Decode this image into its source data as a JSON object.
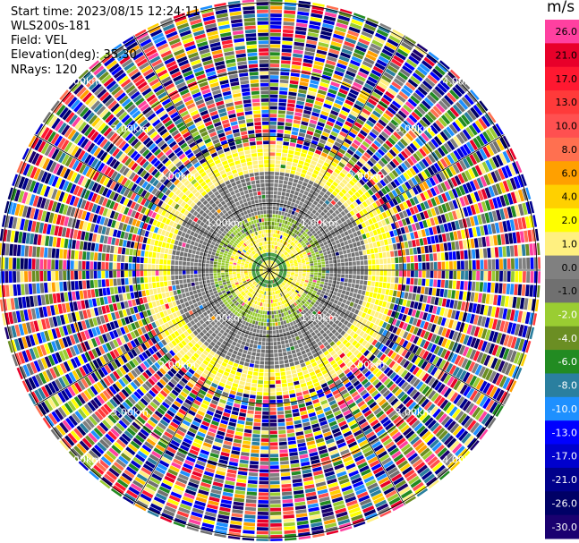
{
  "header": {
    "start_time": "Start time: 2023/08/15 12:24:11",
    "instrument": "WLS200s-181",
    "field": "Field: VEL",
    "elevation": "Elevation(deg): 35.30",
    "nrays": "NRays: 120"
  },
  "colorbar": {
    "units": "m/s",
    "ticks": [
      "26.0",
      "21.0",
      "17.0",
      "13.0",
      "10.0",
      "8.0",
      "6.0",
      "4.0",
      "2.0",
      "1.0",
      "0.0",
      "-1.0",
      "-2.0",
      "-4.0",
      "-6.0",
      "-8.0",
      "-10.0",
      "-13.0",
      "-17.0",
      "-21.0",
      "-26.0",
      "-30.0"
    ],
    "tick_values": [
      26,
      21,
      17,
      13,
      10,
      8,
      6,
      4,
      2,
      1,
      0,
      -1,
      -2,
      -4,
      -6,
      -8,
      -10,
      -13,
      -17,
      -21,
      -26,
      -30
    ],
    "colors": [
      "#ff40a0",
      "#e8002a",
      "#ff1830",
      "#ff3a3a",
      "#ff5050",
      "#ff7050",
      "#ffa000",
      "#ffd000",
      "#ffff00",
      "#fff080",
      "#808080",
      "#707070",
      "#9acd32",
      "#6b8e23",
      "#228b22",
      "#2a7f9f",
      "#1e90ff",
      "#0000ff",
      "#0000cd",
      "#00008b",
      "#000066",
      "#1a0070"
    ]
  },
  "chart_data": {
    "type": "heatmap",
    "projection": "polar-ppi",
    "field": "VEL",
    "units": "m/s",
    "nrays": 120,
    "range_rings_km": [
      1.0,
      2.0,
      3.0,
      4.0
    ],
    "ring_labels": [
      "1.00km",
      "2.00km",
      "3.00km",
      "4.00km"
    ],
    "vmin": -30.0,
    "vmax": 26.0,
    "structure": [
      {
        "range_km": [
          0.0,
          0.15
        ],
        "velocity": 2.0
      },
      {
        "range_km": [
          0.15,
          0.35
        ],
        "velocity": -5.0
      },
      {
        "range_km": [
          0.35,
          0.75
        ],
        "velocity": 2.0
      },
      {
        "range_km": [
          0.75,
          1.05
        ],
        "velocity": -1.5
      },
      {
        "range_km": [
          1.05,
          1.9
        ],
        "velocity": 0.0
      },
      {
        "range_km": [
          1.9,
          2.4
        ],
        "velocity": 2.0
      },
      {
        "range_km": [
          2.4,
          4.5
        ],
        "velocity": "noise"
      }
    ]
  }
}
